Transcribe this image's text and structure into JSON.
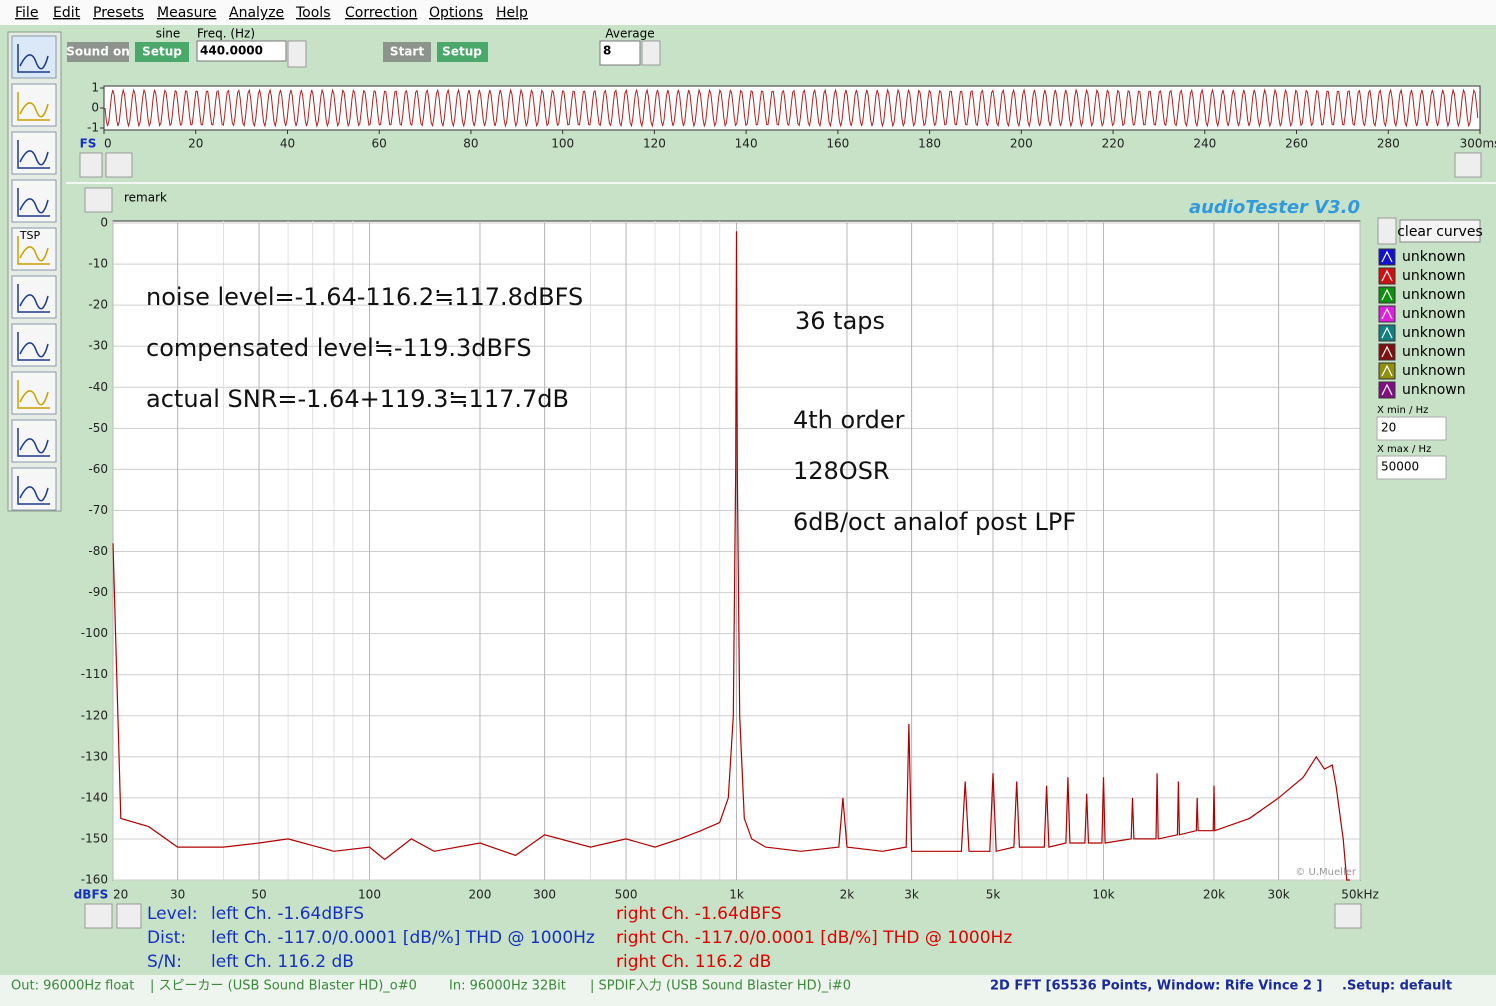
{
  "menu": [
    "File",
    "Edit",
    "Presets",
    "Measure",
    "Analyze",
    "Tools",
    "Correction",
    "Options",
    "Help"
  ],
  "toolbar": {
    "sound_on": "Sound on",
    "sine": "sine",
    "setup": "Setup",
    "freq_label": "Freq. (Hz)",
    "freq_value": "440.0000",
    "start": "Start",
    "setup2": "Setup",
    "average_label": "Average",
    "average_value": "8"
  },
  "sidebar": {
    "tsp": "TSP"
  },
  "waveform": {
    "fs_label": "FS",
    "xlim": [
      0,
      300
    ],
    "ylim": [
      -1,
      1
    ],
    "yticks": [
      1,
      0,
      -1
    ],
    "xticks": [
      0,
      20,
      40,
      60,
      80,
      100,
      120,
      140,
      160,
      180,
      200,
      220,
      240,
      260,
      280,
      {
        "value": 300,
        "label": "300ms"
      }
    ]
  },
  "chart_data": {
    "type": "line",
    "x_scale": "log",
    "brand": "audioTester  V3.0",
    "remark": "remark",
    "y_label": "dBFS",
    "copyright": "© U.Mueller",
    "xlim": [
      20,
      50000
    ],
    "ylim": [
      -160,
      0
    ],
    "grid": true,
    "xticks": [
      20,
      30,
      50,
      100,
      200,
      300,
      500,
      {
        "value": 1000,
        "label": "1k"
      },
      {
        "value": 2000,
        "label": "2k"
      },
      {
        "value": 3000,
        "label": "3k"
      },
      {
        "value": 5000,
        "label": "5k"
      },
      {
        "value": 10000,
        "label": "10k"
      },
      {
        "value": 20000,
        "label": "20k"
      },
      {
        "value": 30000,
        "label": "30k"
      },
      {
        "value": 50000,
        "label": "50kHz"
      }
    ],
    "yticks": [
      0,
      -10,
      -20,
      -30,
      -40,
      -50,
      -60,
      -70,
      -80,
      -90,
      -100,
      -110,
      -120,
      -130,
      -140,
      -150,
      -160
    ],
    "annotations": [
      "noise level=-1.64-116.2≒117.8dBFS",
      "compensated level≒-119.3dBFS",
      "actual SNR=-1.64+119.3≒117.7dB",
      "36 taps",
      "4th order",
      "128OSR",
      "6dB/oct analof post LPF"
    ],
    "x": [
      20,
      21,
      25,
      30,
      40,
      50,
      60,
      80,
      100,
      110,
      130,
      150,
      200,
      250,
      300,
      400,
      500,
      600,
      700,
      800,
      900,
      950,
      980,
      995,
      1000,
      1005,
      1020,
      1050,
      1100,
      1200,
      1500,
      1900,
      1950,
      2000,
      2500,
      2900,
      2950,
      3000,
      3500,
      4100,
      4200,
      4300,
      4900,
      5000,
      5100,
      5700,
      5800,
      5900,
      6900,
      7000,
      7100,
      7900,
      8000,
      8100,
      8900,
      9000,
      9100,
      9900,
      10000,
      10100,
      11900,
      12000,
      12100,
      13900,
      14000,
      14100,
      15900,
      16000,
      16100,
      17900,
      18000,
      18100,
      19900,
      20000,
      20100,
      25000,
      30000,
      35000,
      38000,
      40000,
      42000,
      43000,
      45000,
      46000,
      47000
    ],
    "series": [
      {
        "color": "#b00000",
        "values": [
          -78,
          -145,
          -147,
          -152,
          -152,
          -151,
          -150,
          -153,
          -152,
          -155,
          -150,
          -153,
          -151,
          -154,
          -149,
          -152,
          -150,
          -152,
          -150,
          -148,
          -146,
          -140,
          -120,
          -60,
          -2,
          -60,
          -120,
          -145,
          -150,
          -152,
          -153,
          -152,
          -140,
          -152,
          -153,
          -152,
          -122,
          -153,
          -153,
          -153,
          -136,
          -153,
          -153,
          -134,
          -153,
          -152,
          -136,
          -152,
          -152,
          -137,
          -152,
          -151,
          -135,
          -151,
          -151,
          -139,
          -151,
          -151,
          -135,
          -151,
          -150,
          -140,
          -150,
          -150,
          -134,
          -150,
          -149,
          -136,
          -149,
          -148,
          -140,
          -148,
          -148,
          -137,
          -148,
          -145,
          -140,
          -135,
          -130,
          -133,
          -132,
          -137,
          -150,
          -160,
          -160
        ]
      }
    ]
  },
  "panel": {
    "clear_curves": "clear curves",
    "curves": [
      {
        "label": "unknown",
        "color": "#1010d0"
      },
      {
        "label": "unknown",
        "color": "#d01010"
      },
      {
        "label": "unknown",
        "color": "#109010"
      },
      {
        "label": "unknown",
        "color": "#e020e0"
      },
      {
        "label": "unknown",
        "color": "#108080"
      },
      {
        "label": "unknown",
        "color": "#801010"
      },
      {
        "label": "unknown",
        "color": "#909010"
      },
      {
        "label": "unknown",
        "color": "#801080"
      }
    ],
    "xmin_label": "X min / Hz",
    "xmin": "20",
    "xmax_label": "X max / Hz",
    "xmax": "50000"
  },
  "readout": [
    {
      "label": "Level:",
      "left": "left Ch. -1.64dBFS",
      "right": "right Ch. -1.64dBFS"
    },
    {
      "label": "Dist:",
      "left": "left Ch. -117.0/0.0001 [dB/%] THD @ 1000Hz",
      "right": "right Ch. -117.0/0.0001 [dB/%] THD @ 1000Hz"
    },
    {
      "label": "S/N:",
      "left": "left Ch. 116.2 dB",
      "right": "right Ch. 116.2 dB"
    }
  ],
  "status": [
    "Out: 96000Hz float",
    "| スピーカー (USB Sound Blaster HD)_o#0",
    "In: 96000Hz 32Bit",
    "| SPDIF入力 (USB Sound Blaster HD)_i#0",
    "2D FFT [65536 Points, Window: Rife Vince 2 ]",
    ".Setup:  default"
  ]
}
